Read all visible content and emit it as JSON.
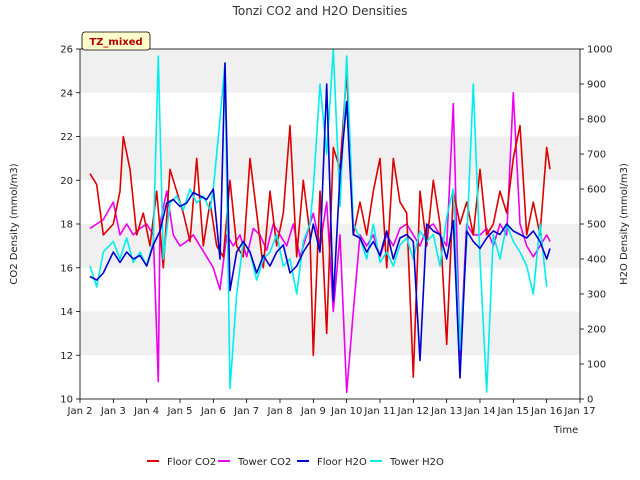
{
  "chart_data": {
    "type": "line",
    "title": "Tonzi CO2 and H2O Densities",
    "badge": "TZ_mixed",
    "xlabel": "Time",
    "ylabel_left": "CO2 Density (mmol/m3)",
    "ylabel_right": "H2O Density (mmol/m3)",
    "xlim": [
      2,
      17
    ],
    "ylim_left": [
      10,
      26
    ],
    "ylim_right": [
      0,
      1000
    ],
    "x_ticks": [
      2,
      3,
      4,
      5,
      6,
      7,
      8,
      9,
      10,
      11,
      12,
      13,
      14,
      15,
      16,
      17
    ],
    "x_tick_labels": [
      "Jan 2",
      "Jan 3",
      "Jan 4",
      "Jan 5",
      "Jan 6",
      "Jan 7",
      "Jan 8",
      "Jan 9",
      "Jan 10",
      "Jan 11",
      "Jan 12",
      "Jan 13",
      "Jan 14",
      "Jan 15",
      "Jan 16",
      "Jan 17"
    ],
    "y_ticks_left": [
      10,
      12,
      14,
      16,
      18,
      20,
      22,
      24,
      26
    ],
    "y_ticks_right": [
      0,
      100,
      200,
      300,
      400,
      500,
      600,
      700,
      800,
      900,
      1000
    ],
    "grid": "horizontal bands",
    "legend_position": "bottom",
    "colors": {
      "floor_co2": "#dd0000",
      "tower_co2": "#ee00ee",
      "floor_h2o": "#0000cc",
      "tower_h2o": "#00eeee",
      "band": "#f0f0f0",
      "badge_bg": "#ffffcc"
    },
    "series": [
      {
        "name": "Floor CO2",
        "axis": "left",
        "color": "#dd0000",
        "x": [
          2.3,
          2.5,
          2.7,
          3.0,
          3.2,
          3.3,
          3.5,
          3.7,
          3.9,
          4.1,
          4.3,
          4.5,
          4.7,
          4.9,
          5.1,
          5.3,
          5.5,
          5.7,
          5.9,
          6.1,
          6.3,
          6.5,
          6.7,
          6.9,
          7.1,
          7.3,
          7.5,
          7.7,
          7.9,
          8.1,
          8.3,
          8.5,
          8.7,
          8.9,
          9.0,
          9.2,
          9.4,
          9.6,
          9.8,
          10.0,
          10.2,
          10.4,
          10.6,
          10.8,
          11.0,
          11.2,
          11.4,
          11.6,
          11.8,
          12.0,
          12.2,
          12.4,
          12.6,
          12.8,
          13.0,
          13.2,
          13.4,
          13.6,
          13.8,
          14.0,
          14.2,
          14.4,
          14.6,
          14.8,
          15.0,
          15.2,
          15.4,
          15.6,
          15.8,
          16.0,
          16.1
        ],
        "values": [
          20.3,
          19.8,
          17.5,
          18.0,
          19.5,
          22.0,
          20.5,
          17.5,
          18.5,
          17.0,
          19.5,
          16.0,
          20.5,
          19.5,
          18.5,
          17.2,
          21.0,
          17.0,
          19.0,
          17.0,
          16.5,
          20.0,
          17.0,
          16.5,
          21.0,
          18.5,
          16.0,
          19.5,
          17.0,
          18.5,
          22.5,
          16.5,
          20.0,
          17.5,
          12.0,
          19.5,
          13.0,
          21.5,
          20.5,
          25.0,
          17.5,
          19.0,
          17.5,
          19.5,
          21.0,
          16.0,
          21.0,
          19.0,
          18.5,
          11.0,
          19.5,
          17.0,
          20.0,
          18.0,
          12.5,
          19.5,
          18.0,
          19.0,
          17.5,
          20.5,
          17.5,
          18.0,
          19.5,
          18.5,
          21.0,
          22.5,
          17.5,
          19.0,
          17.5,
          21.5,
          20.5
        ]
      },
      {
        "name": "Tower CO2",
        "axis": "left",
        "color": "#ee00ee",
        "x": [
          2.3,
          2.5,
          2.7,
          3.0,
          3.2,
          3.4,
          3.6,
          3.8,
          4.0,
          4.2,
          4.35,
          4.4,
          4.6,
          4.8,
          5.0,
          5.2,
          5.4,
          5.6,
          5.8,
          6.0,
          6.2,
          6.4,
          6.6,
          6.8,
          7.0,
          7.2,
          7.4,
          7.6,
          7.8,
          8.0,
          8.2,
          8.4,
          8.6,
          8.8,
          9.0,
          9.2,
          9.4,
          9.6,
          9.8,
          10.0,
          10.2,
          10.4,
          10.6,
          10.8,
          11.0,
          11.2,
          11.4,
          11.6,
          11.8,
          12.0,
          12.2,
          12.4,
          12.6,
          12.8,
          13.0,
          13.2,
          13.4,
          13.6,
          13.8,
          14.0,
          14.2,
          14.4,
          14.6,
          14.8,
          15.0,
          15.2,
          15.4,
          15.6,
          15.8,
          16.0,
          16.1
        ],
        "values": [
          17.8,
          18.0,
          18.2,
          19.0,
          17.5,
          18.0,
          17.5,
          17.8,
          18.0,
          17.5,
          10.8,
          18.0,
          19.5,
          17.5,
          17.0,
          17.2,
          17.5,
          17.0,
          16.5,
          16.0,
          15.0,
          17.5,
          17.0,
          17.5,
          16.5,
          17.8,
          17.5,
          16.8,
          18.0,
          17.5,
          17.0,
          18.0,
          16.5,
          17.5,
          18.5,
          17.0,
          19.0,
          14.0,
          17.5,
          10.3,
          14.0,
          17.5,
          17.0,
          17.5,
          16.5,
          17.5,
          17.0,
          17.8,
          18.0,
          17.5,
          17.0,
          17.8,
          18.0,
          17.5,
          17.0,
          23.5,
          12.0,
          18.0,
          17.5,
          17.5,
          17.8,
          17.0,
          18.0,
          17.5,
          24.0,
          18.0,
          17.0,
          16.5,
          17.0,
          17.5,
          17.2
        ]
      },
      {
        "name": "Floor H2O",
        "axis": "right",
        "color": "#0000cc",
        "x": [
          2.3,
          2.5,
          2.7,
          3.0,
          3.2,
          3.4,
          3.6,
          3.8,
          4.0,
          4.2,
          4.4,
          4.6,
          4.8,
          5.0,
          5.2,
          5.4,
          5.6,
          5.8,
          6.0,
          6.2,
          6.35,
          6.5,
          6.7,
          6.9,
          7.1,
          7.3,
          7.5,
          7.7,
          7.9,
          8.1,
          8.3,
          8.5,
          8.7,
          8.9,
          9.0,
          9.2,
          9.4,
          9.6,
          9.8,
          10.0,
          10.2,
          10.4,
          10.6,
          10.8,
          11.0,
          11.2,
          11.4,
          11.6,
          11.8,
          12.0,
          12.2,
          12.4,
          12.6,
          12.8,
          13.0,
          13.2,
          13.4,
          13.6,
          13.8,
          14.0,
          14.2,
          14.4,
          14.6,
          14.8,
          15.0,
          15.2,
          15.4,
          15.6,
          15.8,
          16.0,
          16.1
        ],
        "values": [
          350,
          340,
          360,
          420,
          390,
          420,
          400,
          410,
          380,
          440,
          480,
          560,
          570,
          550,
          560,
          590,
          580,
          570,
          600,
          400,
          960,
          310,
          420,
          450,
          420,
          360,
          410,
          380,
          420,
          440,
          360,
          380,
          420,
          450,
          500,
          420,
          900,
          280,
          640,
          850,
          470,
          460,
          420,
          450,
          410,
          480,
          400,
          460,
          470,
          450,
          110,
          500,
          480,
          470,
          400,
          510,
          60,
          480,
          450,
          430,
          460,
          480,
          470,
          500,
          480,
          470,
          460,
          480,
          450,
          400,
          430
        ]
      },
      {
        "name": "Tower H2O",
        "axis": "right",
        "color": "#00eeee",
        "x": [
          2.3,
          2.5,
          2.7,
          3.0,
          3.2,
          3.4,
          3.6,
          3.8,
          4.0,
          4.2,
          4.35,
          4.5,
          4.7,
          4.9,
          5.1,
          5.3,
          5.5,
          5.7,
          5.9,
          6.0,
          6.2,
          6.35,
          6.5,
          6.7,
          6.9,
          7.1,
          7.3,
          7.5,
          7.7,
          7.9,
          8.1,
          8.3,
          8.5,
          8.7,
          8.9,
          9.0,
          9.2,
          9.4,
          9.6,
          9.8,
          10.0,
          10.2,
          10.4,
          10.6,
          10.8,
          11.0,
          11.2,
          11.4,
          11.6,
          11.8,
          12.0,
          12.2,
          12.4,
          12.6,
          12.8,
          13.0,
          13.2,
          13.4,
          13.6,
          13.8,
          14.0,
          14.2,
          14.4,
          14.6,
          14.8,
          15.0,
          15.2,
          15.4,
          15.6,
          15.8,
          16.0
        ],
        "values": [
          380,
          320,
          420,
          450,
          400,
          460,
          390,
          420,
          380,
          450,
          980,
          400,
          560,
          580,
          540,
          600,
          560,
          580,
          540,
          600,
          800,
          960,
          30,
          300,
          450,
          420,
          340,
          400,
          420,
          470,
          380,
          400,
          300,
          450,
          500,
          600,
          900,
          700,
          1000,
          550,
          980,
          500,
          460,
          400,
          500,
          390,
          420,
          380,
          440,
          460,
          400,
          480,
          450,
          470,
          380,
          520,
          600,
          140,
          450,
          900,
          400,
          20,
          470,
          400,
          500,
          450,
          420,
          380,
          300,
          500,
          320
        ]
      }
    ]
  }
}
